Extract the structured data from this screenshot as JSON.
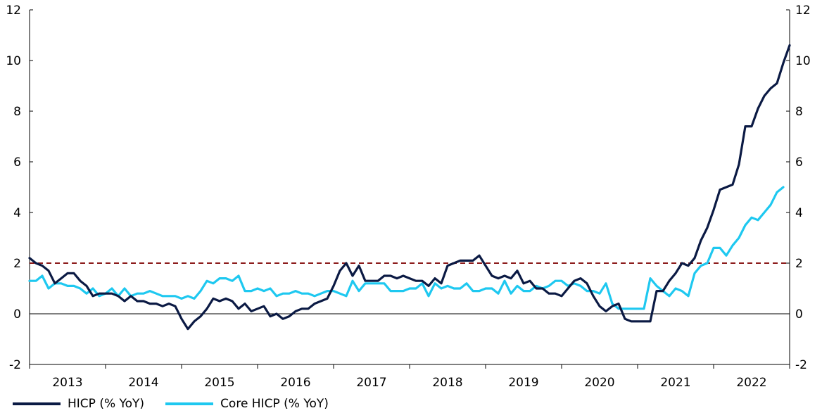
{
  "chart_data": {
    "type": "line",
    "title": "",
    "xlabel": "",
    "ylabel": "",
    "x_start": "2012-12",
    "x_labels": [
      "2013",
      "2014",
      "2015",
      "2016",
      "2017",
      "2018",
      "2019",
      "2020",
      "2021",
      "2022"
    ],
    "ylim": [
      -2,
      12
    ],
    "yticks": [
      -2,
      0,
      2,
      4,
      6,
      8,
      10,
      12
    ],
    "secondary_y_axis": true,
    "grid": false,
    "reference_line": {
      "value": 2,
      "style": "dashed",
      "color": "#8b1a1a"
    },
    "zero_line": {
      "value": 0,
      "color": "#000000"
    },
    "legend_position": "bottom-left",
    "series": [
      {
        "name": "HICP (% YoY)",
        "color": "#0b1a44",
        "values": [
          2.2,
          2.0,
          1.9,
          1.7,
          1.2,
          1.4,
          1.6,
          1.6,
          1.3,
          1.1,
          0.7,
          0.8,
          0.8,
          0.8,
          0.7,
          0.5,
          0.7,
          0.5,
          0.5,
          0.4,
          0.4,
          0.3,
          0.4,
          0.3,
          -0.2,
          -0.6,
          -0.3,
          -0.1,
          0.2,
          0.6,
          0.5,
          0.6,
          0.5,
          0.2,
          0.4,
          0.1,
          0.2,
          0.3,
          -0.1,
          0.0,
          -0.2,
          -0.1,
          0.1,
          0.2,
          0.2,
          0.4,
          0.5,
          0.6,
          1.1,
          1.7,
          2.0,
          1.5,
          1.9,
          1.3,
          1.3,
          1.3,
          1.5,
          1.5,
          1.4,
          1.5,
          1.4,
          1.3,
          1.3,
          1.1,
          1.4,
          1.2,
          1.9,
          2.0,
          2.1,
          2.1,
          2.1,
          2.3,
          1.9,
          1.5,
          1.4,
          1.5,
          1.4,
          1.7,
          1.2,
          1.3,
          1.0,
          1.0,
          0.8,
          0.8,
          0.7,
          1.0,
          1.3,
          1.4,
          1.2,
          0.7,
          0.3,
          0.1,
          0.3,
          0.4,
          -0.2,
          -0.3,
          -0.3,
          -0.3,
          -0.3,
          0.9,
          0.9,
          1.3,
          1.6,
          2.0,
          1.9,
          2.2,
          2.9,
          3.4,
          4.1,
          4.9,
          5.0,
          5.1,
          5.9,
          7.4,
          7.4,
          8.1,
          8.6,
          8.9,
          9.1,
          9.9,
          10.6
        ]
      },
      {
        "name": "Core HICP (% YoY)",
        "color": "#1ec8f0",
        "values": [
          1.3,
          1.3,
          1.5,
          1.0,
          1.2,
          1.2,
          1.1,
          1.1,
          1.0,
          0.8,
          1.0,
          0.7,
          0.8,
          1.0,
          0.7,
          1.0,
          0.7,
          0.8,
          0.8,
          0.9,
          0.8,
          0.7,
          0.7,
          0.7,
          0.6,
          0.7,
          0.6,
          0.9,
          1.3,
          1.2,
          1.4,
          1.4,
          1.3,
          1.5,
          0.9,
          0.9,
          1.0,
          0.9,
          1.0,
          0.7,
          0.8,
          0.8,
          0.9,
          0.8,
          0.8,
          0.7,
          0.8,
          0.9,
          0.9,
          0.8,
          0.7,
          1.3,
          0.9,
          1.2,
          1.2,
          1.2,
          1.2,
          0.9,
          0.9,
          0.9,
          1.0,
          1.0,
          1.2,
          0.7,
          1.2,
          1.0,
          1.1,
          1.0,
          1.0,
          1.2,
          0.9,
          0.9,
          1.0,
          1.0,
          0.8,
          1.3,
          0.8,
          1.1,
          0.9,
          0.9,
          1.1,
          1.0,
          1.1,
          1.3,
          1.3,
          1.1,
          1.2,
          1.1,
          0.9,
          0.9,
          0.8,
          1.2,
          0.4,
          0.2,
          0.2,
          0.2,
          0.2,
          0.2,
          1.4,
          1.1,
          0.9,
          0.7,
          1.0,
          0.9,
          0.7,
          1.6,
          1.9,
          2.0,
          2.6,
          2.6,
          2.3,
          2.7,
          3.0,
          3.5,
          3.8,
          3.7,
          4.0,
          4.3,
          4.8,
          5.0
        ]
      }
    ]
  }
}
